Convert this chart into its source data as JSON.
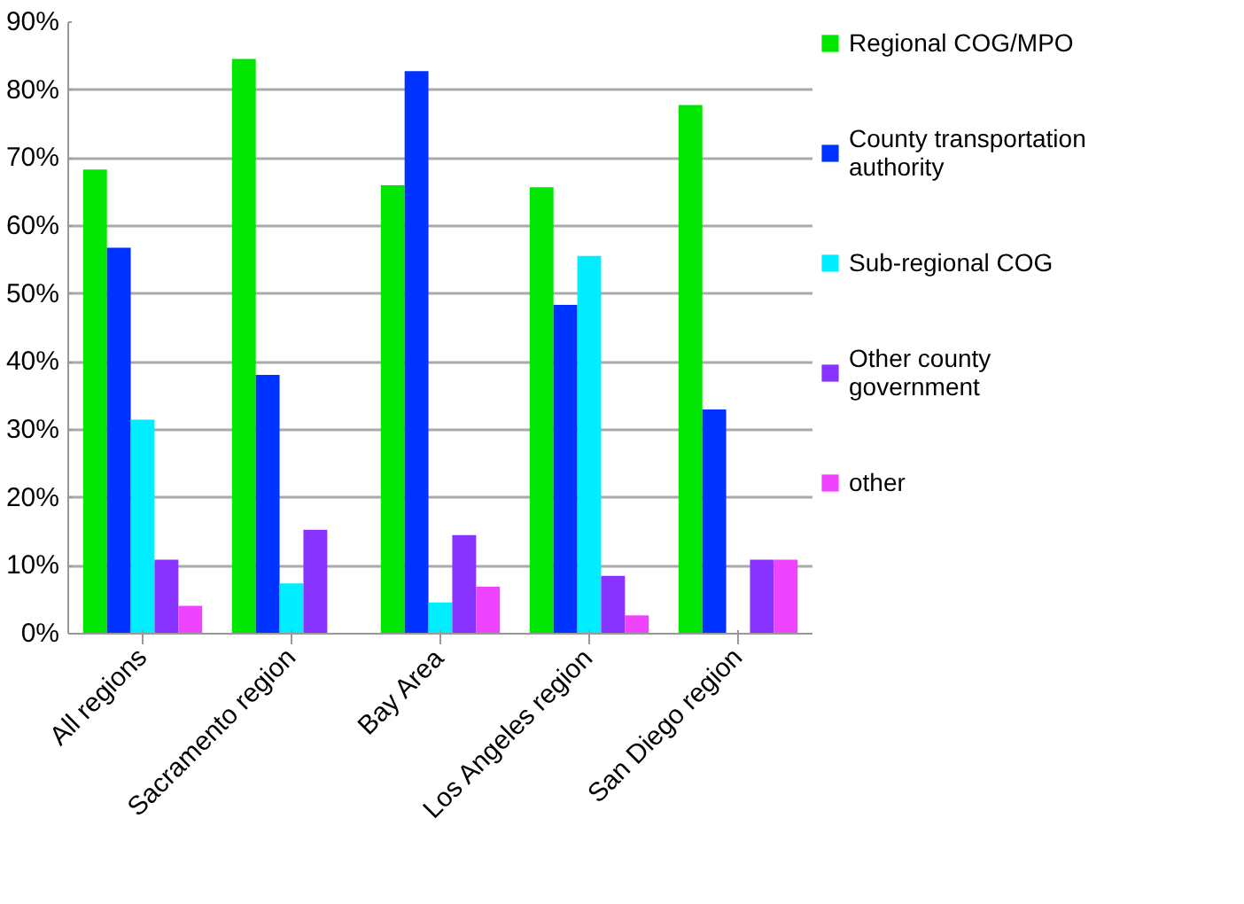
{
  "chart_data": {
    "type": "bar",
    "categories": [
      "All regions",
      "Sacramento region",
      "Bay Area",
      "Los Angeles region",
      "San Diego region"
    ],
    "series": [
      {
        "name": "Regional COG/MPO",
        "color": "#00e600",
        "values": [
          68.3,
          84.6,
          66.0,
          65.7,
          77.8
        ]
      },
      {
        "name": "County transportation authority",
        "color": "#0033ff",
        "values": [
          56.8,
          38.1,
          82.8,
          48.4,
          33.0
        ]
      },
      {
        "name": "Sub-regional COG",
        "color": "#00eeff",
        "values": [
          31.5,
          7.4,
          4.6,
          55.6,
          0
        ]
      },
      {
        "name": "Other county government",
        "color": "#8833ff",
        "values": [
          10.9,
          15.3,
          14.5,
          8.5,
          10.9
        ]
      },
      {
        "name": "other",
        "color": "#ee44ff",
        "values": [
          4.1,
          0,
          6.9,
          2.7,
          10.9
        ]
      }
    ],
    "ylim": [
      0,
      90
    ],
    "yticks": [
      {
        "value": 0,
        "label": "0%"
      },
      {
        "value": 10,
        "label": "10%"
      },
      {
        "value": 20,
        "label": "20%"
      },
      {
        "value": 30,
        "label": "30%"
      },
      {
        "value": 40,
        "label": "40%"
      },
      {
        "value": 50,
        "label": "50%"
      },
      {
        "value": 60,
        "label": "60%"
      },
      {
        "value": 70,
        "label": "70%"
      },
      {
        "value": 80,
        "label": "80%"
      },
      {
        "value": 90,
        "label": "90%"
      }
    ],
    "grid": "y",
    "legend": "right"
  }
}
